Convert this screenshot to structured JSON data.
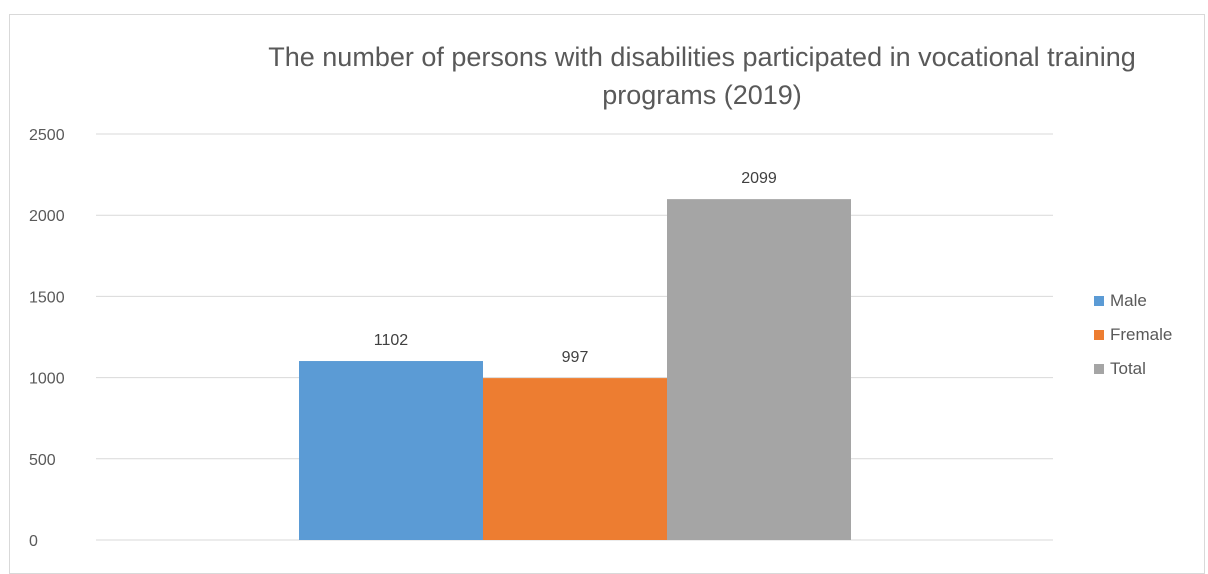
{
  "chart_data": {
    "type": "bar",
    "title": "The number of persons with disabilities participated in vocational training programs (2019)",
    "categories": [
      ""
    ],
    "series": [
      {
        "name": "Male",
        "values": [
          1102
        ],
        "color": "#5b9bd5"
      },
      {
        "name": "Fremale",
        "values": [
          997
        ],
        "color": "#ed7d31"
      },
      {
        "name": "Total",
        "values": [
          2099
        ],
        "color": "#a5a5a5"
      }
    ],
    "xlabel": "",
    "ylabel": "",
    "ylim": [
      0,
      2500
    ],
    "yticks": [
      "0",
      "500",
      "1000",
      "1500",
      "2000",
      "2500"
    ],
    "grid": true,
    "legend_position": "right"
  }
}
